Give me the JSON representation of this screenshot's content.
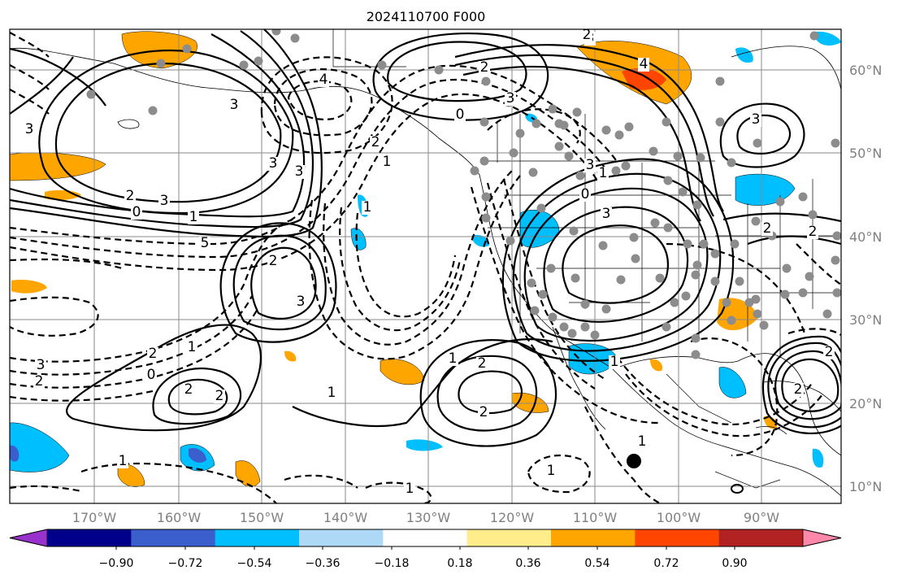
{
  "title": "2024110700 F000",
  "map": {
    "lon_range": [
      -180,
      -80
    ],
    "lat_range": [
      8,
      65
    ],
    "longitude_labels": [
      "170°W",
      "160°W",
      "150°W",
      "140°W",
      "130°W",
      "120°W",
      "110°W",
      "100°W",
      "90°W"
    ],
    "latitude_labels": [
      "60°N",
      "50°N",
      "40°N",
      "30°N",
      "20°N",
      "10°N"
    ],
    "gridlines": true
  },
  "colorbar": {
    "orientation": "horizontal",
    "extend": "both",
    "tick_labels": [
      "−0.90",
      "−0.72",
      "−0.54",
      "−0.36",
      "−0.18",
      "0.18",
      "0.36",
      "0.54",
      "0.72",
      "0.90"
    ],
    "colors": [
      "#9932cc",
      "#00008b",
      "#3a5fcd",
      "#00bfff",
      "#add8f6",
      "#ffffff",
      "#ffec8b",
      "#ffa500",
      "#ff4500",
      "#b22222",
      "#ff88aa"
    ]
  },
  "contour_labels": {
    "solid": [
      "3",
      "3",
      "2",
      "3",
      "2",
      "3",
      "2",
      "1",
      "2",
      "2",
      "1",
      "3",
      "3",
      "3",
      "2",
      "2",
      "2",
      "3",
      "2",
      "1",
      "3",
      "2",
      "4",
      "1"
    ],
    "dashed": [
      "4",
      "2",
      "1",
      "0",
      "2",
      "1",
      "0",
      "1",
      "1",
      "1",
      "0",
      "3",
      "2",
      "0",
      "2",
      "3",
      "5",
      "3",
      "1",
      "1",
      "2",
      "1"
    ]
  },
  "features": {
    "stations": "grey-dots",
    "marker": "black-dot"
  }
}
